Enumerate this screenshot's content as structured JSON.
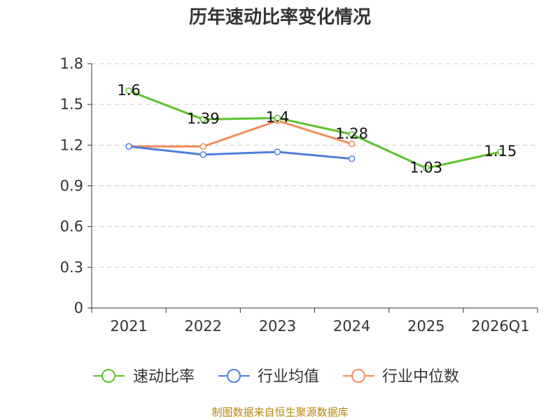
{
  "chart_data": {
    "type": "line",
    "title": "历年速动比率变化情况",
    "categories": [
      "2021",
      "2022",
      "2023",
      "2024",
      "2025",
      "2026Q1"
    ],
    "yticks": [
      "0",
      "0.3",
      "0.6",
      "0.9",
      "1.2",
      "1.5",
      "1.8"
    ],
    "ylim": [
      0,
      1.8
    ],
    "series": [
      {
        "name": "速动比率",
        "color": "#5cc12e",
        "values": [
          1.6,
          1.39,
          1.4,
          1.28,
          1.03,
          1.15
        ],
        "labels": [
          "1.6",
          "1.39",
          "1.4",
          "1.28",
          "1.03",
          "1.15"
        ]
      },
      {
        "name": "行业均值",
        "color": "#4f7fdc",
        "values": [
          1.19,
          1.13,
          1.15,
          1.1,
          null,
          null
        ]
      },
      {
        "name": "行业中位数",
        "color": "#f28c5a",
        "values": [
          1.19,
          1.19,
          1.38,
          1.21,
          null,
          null
        ]
      }
    ],
    "grid": true,
    "legend": "bottom",
    "source": "制图数据来自恒生聚源数据库"
  }
}
